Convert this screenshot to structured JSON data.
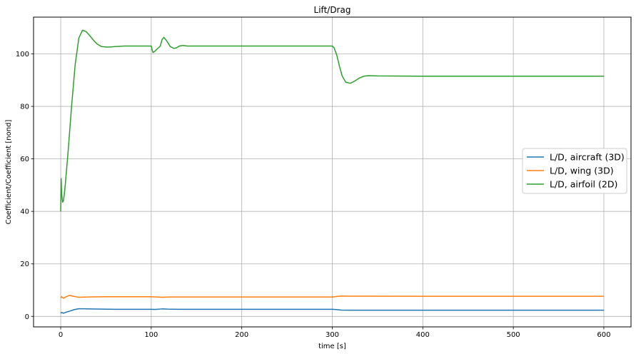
{
  "chart_data": {
    "type": "line",
    "title": "Lift/Drag",
    "xlabel": "time [s]",
    "ylabel": "Coefficient/Coefficient [nond]",
    "xlim": [
      -30,
      630
    ],
    "ylim": [
      -4,
      114
    ],
    "xticks": [
      0,
      100,
      200,
      300,
      400,
      500,
      600
    ],
    "xtick_labels": [
      "0",
      "100",
      "200",
      "300",
      "400",
      "500",
      "600"
    ],
    "yticks": [
      0,
      20,
      40,
      60,
      80,
      100
    ],
    "ytick_labels": [
      "0",
      "20",
      "40",
      "60",
      "80",
      "100"
    ],
    "grid": true,
    "legend_position": "center-right",
    "series": [
      {
        "name": "L/D, aircraft (3D)",
        "color": "#1f77b4",
        "x": [
          0,
          1,
          3,
          6,
          10,
          15,
          20,
          25,
          30,
          40,
          60,
          100,
          102,
          105,
          112,
          118,
          130,
          200,
          300,
          305,
          310,
          320,
          400,
          500,
          600
        ],
        "y": [
          1.2,
          1.5,
          1.2,
          1.6,
          2.0,
          2.6,
          2.9,
          2.9,
          2.85,
          2.8,
          2.7,
          2.7,
          2.65,
          2.65,
          2.85,
          2.75,
          2.7,
          2.7,
          2.7,
          2.6,
          2.4,
          2.35,
          2.35,
          2.35,
          2.35
        ]
      },
      {
        "name": "L/D, wing (3D)",
        "color": "#ff7f0e",
        "x": [
          0,
          1,
          3,
          6,
          10,
          15,
          20,
          30,
          50,
          100,
          102,
          106,
          112,
          120,
          200,
          300,
          305,
          310,
          320,
          400,
          500,
          600
        ],
        "y": [
          7.0,
          7.5,
          6.9,
          7.5,
          8.0,
          7.6,
          7.3,
          7.4,
          7.5,
          7.5,
          7.45,
          7.4,
          7.3,
          7.4,
          7.4,
          7.4,
          7.6,
          7.75,
          7.7,
          7.65,
          7.65,
          7.65
        ]
      },
      {
        "name": "L/D, airfoil (2D)",
        "color": "#2ca02c",
        "x": [
          0,
          0.5,
          1,
          2,
          3,
          4,
          5,
          8,
          12,
          16,
          20,
          24,
          28,
          32,
          36,
          40,
          45,
          50,
          55,
          60,
          70,
          80,
          90,
          100,
          101,
          102,
          104,
          107,
          110,
          112,
          114,
          117,
          121,
          125,
          128,
          131,
          135,
          140,
          150,
          200,
          250,
          300,
          302,
          305,
          308,
          311,
          315,
          320,
          325,
          330,
          335,
          340,
          350,
          400,
          500,
          600
        ],
        "y": [
          40,
          52.5,
          47,
          43.5,
          44,
          46.5,
          50,
          62,
          80,
          96,
          106,
          109,
          108.5,
          107,
          105.3,
          103.8,
          102.8,
          102.6,
          102.6,
          102.8,
          103,
          103,
          103,
          103,
          101.5,
          100.5,
          101,
          102,
          103,
          105.5,
          106.3,
          105,
          102.8,
          102.1,
          102.3,
          103,
          103.2,
          103,
          103,
          103,
          103,
          103,
          102.3,
          99.5,
          95.2,
          91.5,
          89.2,
          88.8,
          89.7,
          90.8,
          91.5,
          91.7,
          91.6,
          91.5,
          91.5,
          91.5
        ]
      }
    ]
  }
}
